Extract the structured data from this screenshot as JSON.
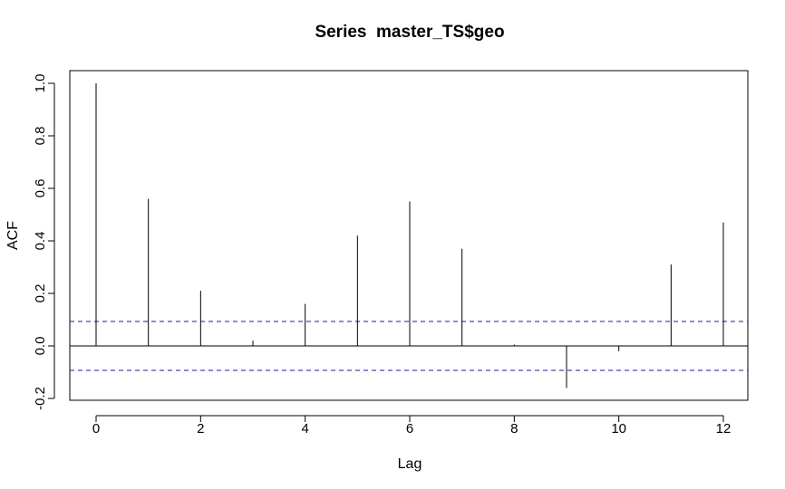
{
  "chart_data": {
    "type": "bar",
    "title": "Series  master_TS$geo",
    "xlabel": "Lag",
    "ylabel": "ACF",
    "xlim": [
      0,
      12
    ],
    "ylim": [
      -0.2,
      1.0
    ],
    "x_ticks": [
      0,
      2,
      4,
      6,
      8,
      10,
      12
    ],
    "x_tick_labels": [
      "0",
      "2",
      "4",
      "6",
      "8",
      "10",
      "12"
    ],
    "y_ticks": [
      -0.2,
      0.0,
      0.2,
      0.4,
      0.6,
      0.8,
      1.0
    ],
    "y_tick_labels": [
      "-0.2",
      "0.0",
      "0.2",
      "0.4",
      "0.6",
      "0.8",
      "1.0"
    ],
    "lags": [
      0,
      1,
      2,
      3,
      4,
      5,
      6,
      7,
      8,
      9,
      10,
      11,
      12
    ],
    "acf": [
      1.0,
      0.56,
      0.21,
      0.02,
      0.16,
      0.42,
      0.55,
      0.37,
      0.005,
      -0.16,
      -0.02,
      0.31,
      0.47
    ],
    "confidence_bound": 0.093,
    "colors": {
      "spike": "#000000",
      "zero_line": "#000000",
      "confidence_line": "#1a1aa6",
      "frame": "#000000"
    },
    "grid": false
  }
}
